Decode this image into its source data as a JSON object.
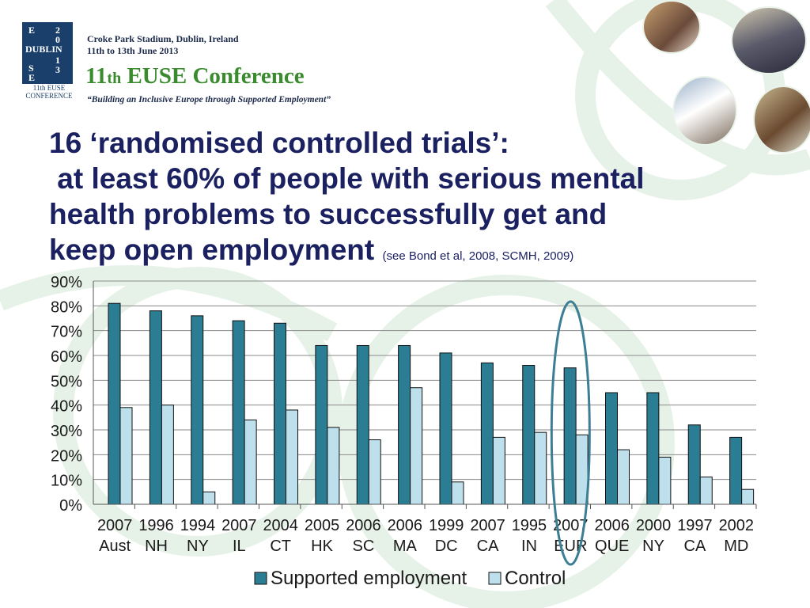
{
  "header": {
    "logo_letters": [
      "E",
      "2",
      "0",
      "DUBLIN",
      "1",
      "S",
      "3",
      "E"
    ],
    "logo_caption": "11th EUSE CONFERENCE",
    "venue_line1": "Croke Park Stadium, Dublin, Ireland",
    "venue_line2": "11th to 13th June 2013",
    "conf_num": "11",
    "conf_sup": "th",
    "conf_name": " EUSE Conference",
    "tagline": "“Building an Inclusive Europe through Supported Employment”"
  },
  "headline": {
    "line1": "16 ‘randomised controlled trials’:",
    "line2": " at least 60% of people with serious mental",
    "line3": "health problems to successfully get and",
    "line4": "keep open employment",
    "citation": "(see Bond et al, 2008, SCMH, 2009)"
  },
  "colors": {
    "supported": "#2a7d93",
    "control": "#bde0ec",
    "highlight_ellipse": "#3c7f95",
    "headline": "#1b2160",
    "conf_green": "#3a8a2e"
  },
  "chart_data": {
    "type": "bar",
    "categories": [
      [
        "2007",
        "Aust"
      ],
      [
        "1996",
        "NH"
      ],
      [
        "1994",
        "NY"
      ],
      [
        "2007",
        "IL"
      ],
      [
        "2004",
        "CT"
      ],
      [
        "2005",
        "HK"
      ],
      [
        "2006",
        "SC"
      ],
      [
        "2006",
        "MA"
      ],
      [
        "1999",
        "DC"
      ],
      [
        "2007",
        "CA"
      ],
      [
        "1995",
        "IN"
      ],
      [
        "2007",
        "EUR"
      ],
      [
        "2006",
        "QUE"
      ],
      [
        "2000",
        "NY"
      ],
      [
        "1997",
        "CA"
      ],
      [
        "2002",
        "MD"
      ]
    ],
    "series": [
      {
        "name": "Supported employment",
        "values": [
          81,
          78,
          76,
          74,
          73,
          64,
          64,
          64,
          61,
          57,
          56,
          55,
          45,
          45,
          32,
          27
        ]
      },
      {
        "name": "Control",
        "values": [
          39,
          40,
          5,
          34,
          38,
          31,
          26,
          47,
          9,
          27,
          29,
          28,
          22,
          19,
          11,
          6
        ]
      }
    ],
    "ylim": [
      0,
      90
    ],
    "yticks": [
      "0%",
      "10%",
      "20%",
      "30%",
      "40%",
      "50%",
      "60%",
      "70%",
      "80%",
      "90%"
    ],
    "grid": true,
    "legend_position": "bottom",
    "highlighted_category_index": 11
  }
}
